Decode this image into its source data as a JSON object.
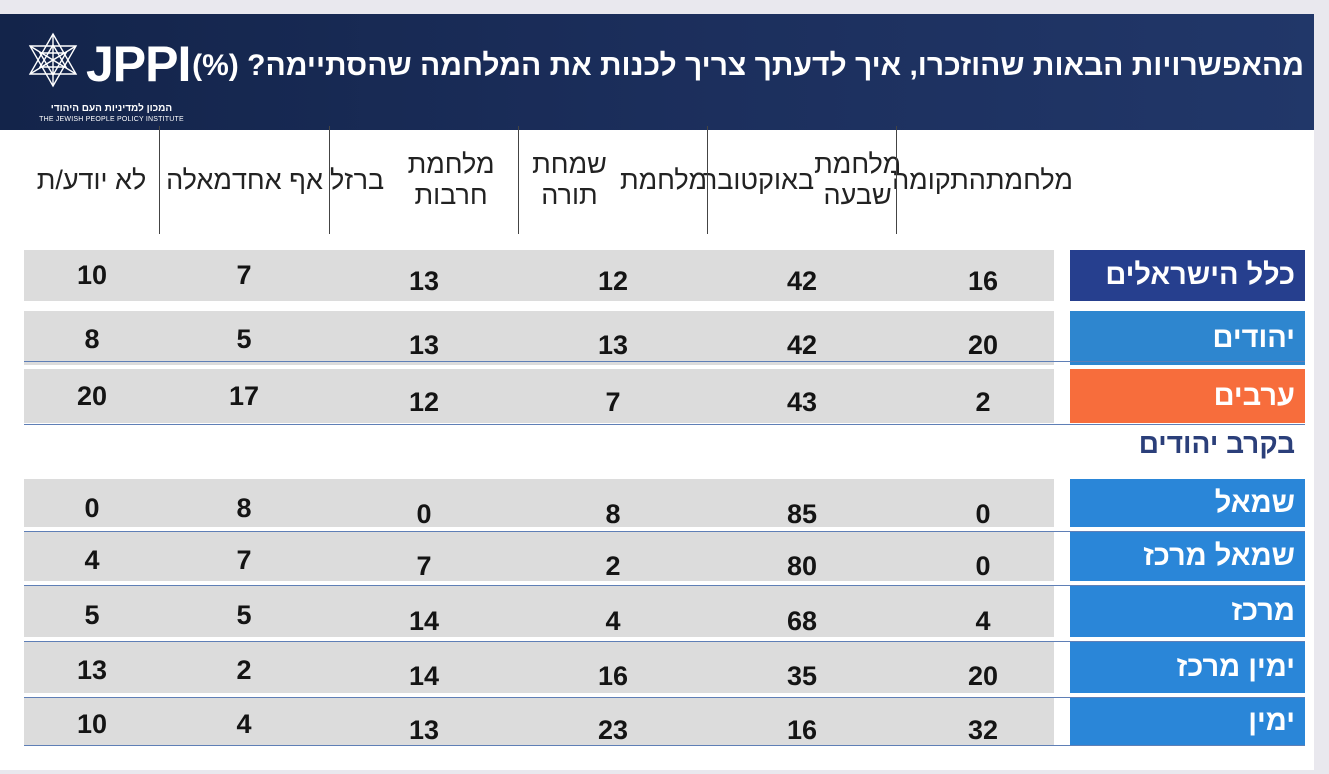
{
  "header": {
    "title": "מהאפשרויות הבאות שהוזכרו, איך לדעתך צריך לכנות את המלחמה שהסתיימה? (%)",
    "logo_text": "JPPI",
    "logo_sub_he": "המכון למדיניות העם היהודי",
    "logo_sub_en": "THE JEWISH PEOPLE POLICY INSTITUTE"
  },
  "colors": {
    "header_bg": "#1c2f5d",
    "all_israelis": "#263f8e",
    "jews": "#2e86cf",
    "arabs": "#f76d3c",
    "subgroup": "#2a86d8",
    "row_bg": "#dcdcdc"
  },
  "section_label": "בקרב יהודים",
  "chart_data": {
    "type": "table",
    "title": "מהאפשרויות הבאות שהוזכרו, איך לדעתך צריך לכנות את המלחמה שהסתיימה? (%)",
    "columns": [
      [
        "מלחמת",
        "התקומה"
      ],
      [
        "מלחמת שבעה",
        "באוקטובר"
      ],
      [
        "מלחמת",
        "שמחת תורה"
      ],
      [
        "מלחמת חרבות",
        "ברזל"
      ],
      [
        "אף אחד",
        "מאלה"
      ],
      [
        "לא יודע/ת"
      ]
    ],
    "rows": [
      {
        "label": "כלל הישראלים",
        "values": [
          16,
          42,
          12,
          13,
          7,
          10
        ]
      },
      {
        "label": "יהודים",
        "values": [
          20,
          42,
          13,
          13,
          5,
          8
        ]
      },
      {
        "label": "ערבים",
        "values": [
          2,
          43,
          7,
          12,
          17,
          20
        ]
      },
      {
        "label": "שמאל",
        "values": [
          0,
          85,
          8,
          0,
          8,
          0
        ]
      },
      {
        "label": "שמאל מרכז",
        "values": [
          0,
          80,
          2,
          7,
          7,
          4
        ]
      },
      {
        "label": "מרכז",
        "values": [
          4,
          68,
          4,
          14,
          5,
          5
        ]
      },
      {
        "label": "ימין מרכז",
        "values": [
          20,
          35,
          16,
          14,
          2,
          13
        ]
      },
      {
        "label": "ימין",
        "values": [
          32,
          16,
          23,
          13,
          4,
          10
        ]
      }
    ]
  }
}
